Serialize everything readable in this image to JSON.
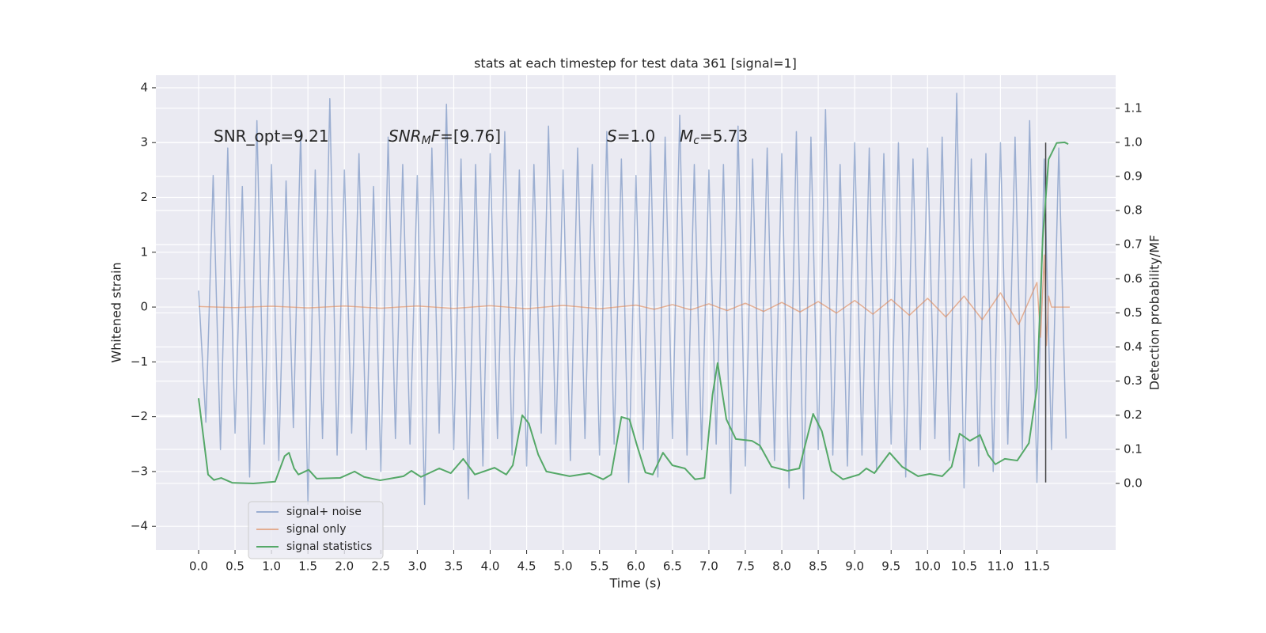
{
  "chart_data": {
    "type": "line",
    "title": "stats at each timestep for test data 361 [signal=1]",
    "x_label": "Time (s)",
    "y_label": "Whitened strain",
    "y2_label": "Detection probability/MF",
    "background": "#eaeaf2",
    "grid": true,
    "legend": "lower left",
    "xlim": [
      -0.586,
      12.58
    ],
    "ylim": [
      -4.43,
      4.23
    ],
    "y2lim": [
      -0.195,
      1.197
    ],
    "xticks": [
      {
        "value": 0,
        "label": "0.0"
      },
      0.5,
      {
        "value": 1,
        "label": "1.0"
      },
      1.5,
      {
        "value": 2,
        "label": "2.0"
      },
      2.5,
      {
        "value": 3,
        "label": "3.0"
      },
      3.5,
      {
        "value": 4,
        "label": "4.0"
      },
      4.5,
      {
        "value": 5,
        "label": "5.0"
      },
      5.5,
      {
        "value": 6,
        "label": "6.0"
      },
      6.5,
      {
        "value": 7,
        "label": "7.0"
      },
      7.5,
      {
        "value": 8,
        "label": "8.0"
      },
      8.5,
      {
        "value": 9,
        "label": "9.0"
      },
      9.5,
      {
        "value": 10,
        "label": "10.0"
      },
      10.5,
      {
        "value": 11,
        "label": "11.0"
      },
      11.5
    ],
    "yticks": [
      {
        "value": -4,
        "label": "−4"
      },
      {
        "value": -3,
        "label": "−3"
      },
      {
        "value": -2,
        "label": "−2"
      },
      {
        "value": -1,
        "label": "−1"
      },
      0,
      1,
      2,
      3,
      4
    ],
    "y2ticks": [
      {
        "value": 0,
        "label": "0.0"
      },
      0.1,
      0.2,
      0.3,
      0.4,
      0.5,
      0.6,
      0.7,
      0.8,
      0.9,
      {
        "value": 1,
        "label": "1.0"
      },
      1.1
    ],
    "annotations": [
      [
        {
          "text": "SNR_opt=9.21"
        }
      ],
      [
        {
          "text": "SNR",
          "italic": true
        },
        {
          "text": "M",
          "italic": true,
          "sub": true
        },
        {
          "text": "F",
          "italic": true
        },
        {
          "text": "=[9.76]"
        }
      ],
      [
        {
          "text": "S",
          "italic": true
        },
        {
          "text": "=1.0"
        }
      ],
      [
        {
          "text": "M",
          "italic": true
        },
        {
          "text": "c",
          "italic": true,
          "sub": true
        },
        {
          "text": "=5.73"
        }
      ]
    ],
    "vline": {
      "x": 11.62,
      "ymin": -3.2,
      "ymax": 3.0,
      "color": "#444444"
    },
    "series": [
      {
        "name": "signal+ noise",
        "color": "#4c72b0",
        "alpha": 0.5,
        "x": [
          0,
          0.1,
          0.2,
          0.3,
          0.4,
          0.5,
          0.6,
          0.7,
          0.8,
          0.9,
          1,
          1.1,
          1.2,
          1.3,
          1.4,
          1.5,
          1.6,
          1.7,
          1.8,
          1.9,
          2,
          2.1,
          2.2,
          2.3,
          2.4,
          2.5,
          2.6,
          2.7,
          2.8,
          2.9,
          3,
          3.1,
          3.2,
          3.3,
          3.4,
          3.5,
          3.6,
          3.7,
          3.8,
          3.9,
          4,
          4.1,
          4.2,
          4.3,
          4.4,
          4.5,
          4.6,
          4.7,
          4.8,
          4.9,
          5,
          5.1,
          5.2,
          5.3,
          5.4,
          5.5,
          5.6,
          5.7,
          5.8,
          5.9,
          6,
          6.1,
          6.2,
          6.3,
          6.4,
          6.5,
          6.6,
          6.7,
          6.8,
          6.9,
          7,
          7.1,
          7.2,
          7.3,
          7.4,
          7.5,
          7.6,
          7.7,
          7.8,
          7.9,
          8,
          8.1,
          8.2,
          8.3,
          8.4,
          8.5,
          8.6,
          8.7,
          8.8,
          8.9,
          9,
          9.1,
          9.2,
          9.3,
          9.4,
          9.5,
          9.6,
          9.7,
          9.8,
          9.9,
          10,
          10.1,
          10.2,
          10.3,
          10.4,
          10.5,
          10.6,
          10.7,
          10.8,
          10.9,
          11,
          11.1,
          11.2,
          11.3,
          11.4,
          11.5,
          11.6,
          11.7,
          11.8,
          11.9
        ],
        "values": [
          0.3,
          -2.1,
          2.4,
          -2.6,
          2.9,
          -2.3,
          2.2,
          -3.1,
          3.4,
          -2.5,
          2.6,
          -2.8,
          2.3,
          -2.2,
          3.2,
          -3.6,
          2.5,
          -2.4,
          3.8,
          -2.7,
          2.5,
          -2.3,
          2.8,
          -2.6,
          2.2,
          -3.0,
          3.1,
          -2.4,
          2.6,
          -2.5,
          2.4,
          -3.6,
          2.9,
          -2.3,
          3.7,
          -2.6,
          2.7,
          -3.5,
          2.6,
          -2.9,
          2.8,
          -2.4,
          3.2,
          -2.7,
          2.5,
          -2.9,
          2.6,
          -2.3,
          3.3,
          -2.5,
          2.5,
          -2.8,
          2.9,
          -2.4,
          2.6,
          -2.7,
          3.2,
          -2.5,
          2.7,
          -3.2,
          2.4,
          -2.6,
          3.0,
          -3.1,
          3.1,
          -2.4,
          3.5,
          -2.7,
          2.6,
          -2.6,
          2.5,
          -2.5,
          2.6,
          -3.4,
          3.3,
          -2.9,
          2.7,
          -2.6,
          2.9,
          -2.8,
          2.8,
          -3.3,
          3.2,
          -3.5,
          3.1,
          -2.6,
          3.6,
          -2.7,
          2.6,
          -2.9,
          3.0,
          -2.7,
          2.9,
          -3.0,
          2.8,
          -2.5,
          3.0,
          -3.1,
          2.7,
          -2.6,
          2.9,
          -2.4,
          3.1,
          -2.8,
          3.9,
          -3.3,
          2.7,
          -2.9,
          2.8,
          -3.0,
          3.0,
          -2.5,
          3.1,
          -2.6,
          3.4,
          -3.2,
          2.7,
          -2.6,
          2.9,
          -2.4
        ]
      },
      {
        "name": "signal only",
        "color": "#dd8452",
        "alpha": 0.6,
        "x": [
          0,
          0.5,
          1,
          1.5,
          2,
          2.5,
          3,
          3.5,
          4,
          4.5,
          5,
          5.5,
          6,
          6.25,
          6.5,
          6.75,
          7,
          7.25,
          7.5,
          7.75,
          8,
          8.25,
          8.5,
          8.75,
          9,
          9.25,
          9.5,
          9.75,
          10,
          10.25,
          10.5,
          10.75,
          11,
          11.25,
          11.5,
          11.55,
          11.6,
          11.63,
          11.66,
          11.7,
          11.95
        ],
        "values": [
          0.01,
          -0.01,
          0.015,
          -0.015,
          0.02,
          -0.02,
          0.02,
          -0.025,
          0.025,
          -0.03,
          0.03,
          -0.03,
          0.035,
          -0.04,
          0.045,
          -0.05,
          0.06,
          -0.065,
          0.07,
          -0.08,
          0.085,
          -0.09,
          0.1,
          -0.11,
          0.12,
          -0.13,
          0.14,
          -0.15,
          0.16,
          -0.18,
          0.2,
          -0.23,
          0.26,
          -0.32,
          0.45,
          -0.55,
          0.95,
          -0.7,
          0.2,
          0.0,
          0.0
        ]
      },
      {
        "name": "signal statistics",
        "color": "#55a868",
        "alpha": 1,
        "axis": "y2",
        "x": [
          0,
          0.13,
          0.21,
          0.31,
          0.46,
          0.75,
          1.05,
          1.18,
          1.24,
          1.31,
          1.37,
          1.51,
          1.62,
          1.94,
          2.14,
          2.27,
          2.49,
          2.81,
          2.92,
          3.05,
          3.3,
          3.46,
          3.63,
          3.79,
          4.06,
          4.22,
          4.31,
          4.44,
          4.53,
          4.66,
          4.77,
          5.09,
          5.36,
          5.55,
          5.66,
          5.8,
          5.91,
          6.02,
          6.13,
          6.23,
          6.37,
          6.5,
          6.67,
          6.81,
          6.94,
          7.05,
          7.12,
          7.24,
          7.37,
          7.59,
          7.7,
          7.86,
          8.08,
          8.24,
          8.43,
          8.55,
          8.68,
          8.84,
          9.06,
          9.16,
          9.27,
          9.48,
          9.65,
          9.87,
          10.03,
          10.2,
          10.33,
          10.44,
          10.58,
          10.72,
          10.83,
          10.93,
          11.06,
          11.23,
          11.39,
          11.5,
          11.58,
          11.66,
          11.77,
          11.88,
          11.93
        ],
        "values": [
          0.25,
          0.026,
          0.01,
          0.016,
          0.002,
          0.0,
          0.005,
          0.08,
          0.09,
          0.044,
          0.026,
          0.04,
          0.014,
          0.016,
          0.035,
          0.019,
          0.009,
          0.021,
          0.037,
          0.019,
          0.044,
          0.03,
          0.072,
          0.026,
          0.046,
          0.026,
          0.053,
          0.2,
          0.176,
          0.084,
          0.035,
          0.021,
          0.03,
          0.012,
          0.026,
          0.195,
          0.188,
          0.107,
          0.032,
          0.026,
          0.09,
          0.053,
          0.044,
          0.012,
          0.016,
          0.26,
          0.353,
          0.188,
          0.13,
          0.125,
          0.111,
          0.049,
          0.037,
          0.044,
          0.204,
          0.153,
          0.037,
          0.012,
          0.026,
          0.044,
          0.03,
          0.09,
          0.049,
          0.021,
          0.028,
          0.021,
          0.049,
          0.146,
          0.125,
          0.142,
          0.084,
          0.056,
          0.072,
          0.067,
          0.118,
          0.28,
          0.72,
          0.95,
          0.998,
          1.0,
          0.995
        ]
      }
    ]
  }
}
